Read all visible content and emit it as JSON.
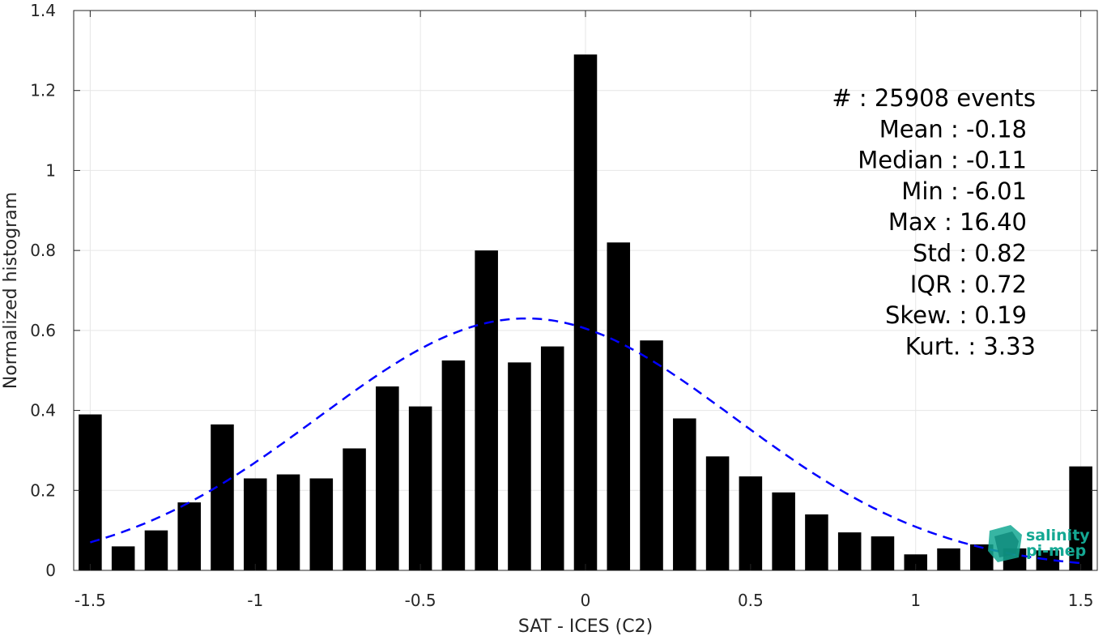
{
  "chart_data": {
    "type": "bar",
    "xlabel": "SAT - ICES (C2)",
    "ylabel": "Normalized histogram",
    "xlim": [
      -1.55,
      1.55
    ],
    "ylim": [
      0,
      1.4
    ],
    "grid": true,
    "xticks": [
      -1.5,
      -1,
      -0.5,
      0,
      0.5,
      1,
      1.5
    ],
    "xtick_labels": [
      "-1.5",
      "-1",
      "-0.5",
      "0",
      "0.5",
      "1",
      "1.5"
    ],
    "yticks": [
      0,
      0.2,
      0.4,
      0.6,
      0.8,
      1,
      1.2,
      1.4
    ],
    "ytick_labels": [
      "0",
      "0.2",
      "0.4",
      "0.6",
      "0.8",
      "1",
      "1.2",
      "1.4"
    ],
    "bar_width": 0.07,
    "x": [
      -1.5,
      -1.4,
      -1.3,
      -1.2,
      -1.1,
      -1.0,
      -0.9,
      -0.8,
      -0.7,
      -0.6,
      -0.5,
      -0.4,
      -0.3,
      -0.2,
      -0.1,
      0.0,
      0.1,
      0.2,
      0.3,
      0.4,
      0.5,
      0.6,
      0.7,
      0.8,
      0.9,
      1.0,
      1.1,
      1.2,
      1.3,
      1.4,
      1.5
    ],
    "values": [
      0.39,
      0.06,
      0.1,
      0.17,
      0.365,
      0.23,
      0.24,
      0.23,
      0.305,
      0.46,
      0.41,
      0.525,
      0.8,
      0.52,
      0.56,
      1.29,
      0.82,
      0.575,
      0.38,
      0.285,
      0.235,
      0.195,
      0.14,
      0.095,
      0.085,
      0.04,
      0.055,
      0.065,
      0.055,
      0.05,
      0.26
    ],
    "bar_color": "#000000",
    "fit_curve": {
      "style": "dashed",
      "color": "#0000ff",
      "mean": -0.18,
      "std": 0.63,
      "peak": 0.63,
      "x_range": [
        -1.5,
        1.5
      ]
    },
    "stats": [
      "#  : 25908 events",
      "Mean : -0.18",
      "Median : -0.11",
      "Min : -6.01",
      "Max : 16.40",
      "Std : 0.82",
      "IQR : 0.72",
      "Skew. : 0.19",
      "Kurt. : 3.33"
    ]
  },
  "logo": {
    "line1": "salinity",
    "line2": "pi-mep",
    "color": "#14a893"
  }
}
